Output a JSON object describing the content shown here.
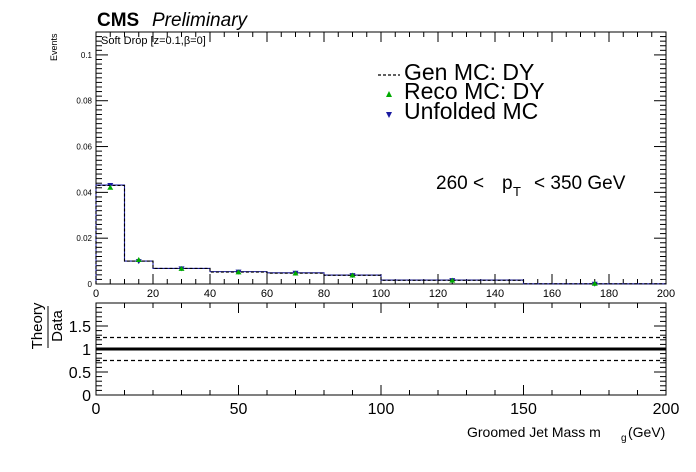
{
  "header": {
    "experiment": "CMS",
    "status": "Preliminary"
  },
  "chart_data": [
    {
      "type": "step-histogram",
      "panel": "main",
      "annotation_top": "Soft Drop [z=0.1,β=0]",
      "ylabel": "Events",
      "xlim": [
        0,
        200
      ],
      "ylim": [
        0,
        0.11
      ],
      "x_ticks": [
        0,
        20,
        40,
        60,
        80,
        100,
        120,
        140,
        160,
        180,
        200
      ],
      "y_ticks": [
        0,
        0.02,
        0.04,
        0.06,
        0.08,
        0.1
      ],
      "y_tick_labels": [
        "0",
        "0.02",
        "0.04",
        "0.06",
        "0.08",
        "0.1"
      ],
      "pt_label": {
        "low": "260 <",
        "var": "p",
        "sub": "T",
        "high": "< 350 GeV"
      },
      "bins": [
        0,
        10,
        20,
        40,
        60,
        80,
        100,
        150,
        200
      ],
      "legend": {
        "position": "top-right",
        "entries": [
          "Gen MC: DY",
          "Reco MC: DY",
          "Unfolded MC"
        ]
      },
      "series": [
        {
          "name": "Gen MC: DY",
          "style": "dashed-step",
          "color": "#000000",
          "values": [
            0.043,
            0.01,
            0.0068,
            0.0052,
            0.0047,
            0.0038,
            0.0016,
            0.0001
          ]
        },
        {
          "name": "Reco MC: DY",
          "style": "triangle-up-marker",
          "color": "#00aa00",
          "x": [
            5,
            15,
            30,
            50,
            70,
            90,
            125,
            175
          ],
          "values": [
            0.042,
            0.0105,
            0.0066,
            0.0051,
            0.0046,
            0.0037,
            0.0015,
            0.0001
          ]
        },
        {
          "name": "Unfolded MC",
          "style": "solid-step-triangle-down",
          "color": "#1a1aa0",
          "values": [
            0.0432,
            0.01,
            0.0068,
            0.0054,
            0.0049,
            0.0039,
            0.0017,
            0.0001
          ]
        }
      ]
    },
    {
      "type": "line",
      "panel": "ratio",
      "ylabel_num": "Theory",
      "ylabel_den": "Data",
      "xlabel": "Groomed Jet Mass m",
      "xlabel_sub": "g",
      "xlabel_unit": "(GeV)",
      "xlim": [
        0,
        200
      ],
      "ylim": [
        0,
        2
      ],
      "x_ticks": [
        0,
        50,
        100,
        150,
        200
      ],
      "y_ticks": [
        0,
        0.5,
        1,
        1.5
      ],
      "y_tick_labels": [
        "0",
        "0.5",
        "1",
        "1.5"
      ],
      "lines": [
        {
          "y": 1.0,
          "style": "solid-thick"
        },
        {
          "y": 1.25,
          "style": "dashed"
        },
        {
          "y": 0.75,
          "style": "dashed"
        }
      ]
    }
  ]
}
